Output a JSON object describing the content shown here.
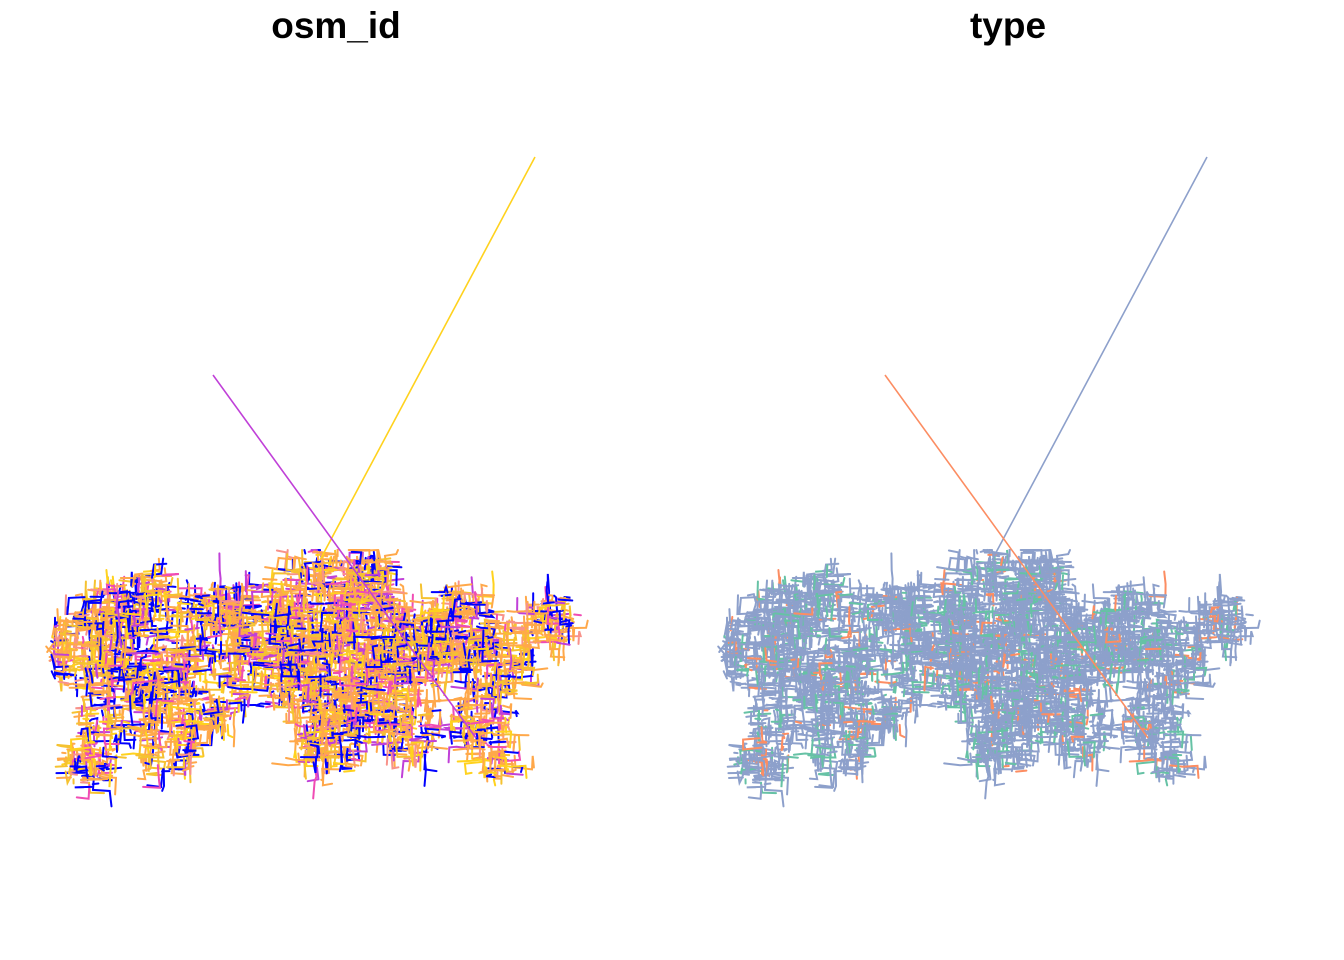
{
  "panels": [
    {
      "title": "osm_id",
      "palette": [
        "#0000FF",
        "#C040D8",
        "#F04CB4",
        "#F8928A",
        "#FFA84A",
        "#F5C230",
        "#FFD21E"
      ]
    },
    {
      "title": "type",
      "palette": [
        "#8DA0CB",
        "#66C2A5",
        "#FC8D62"
      ]
    }
  ]
}
